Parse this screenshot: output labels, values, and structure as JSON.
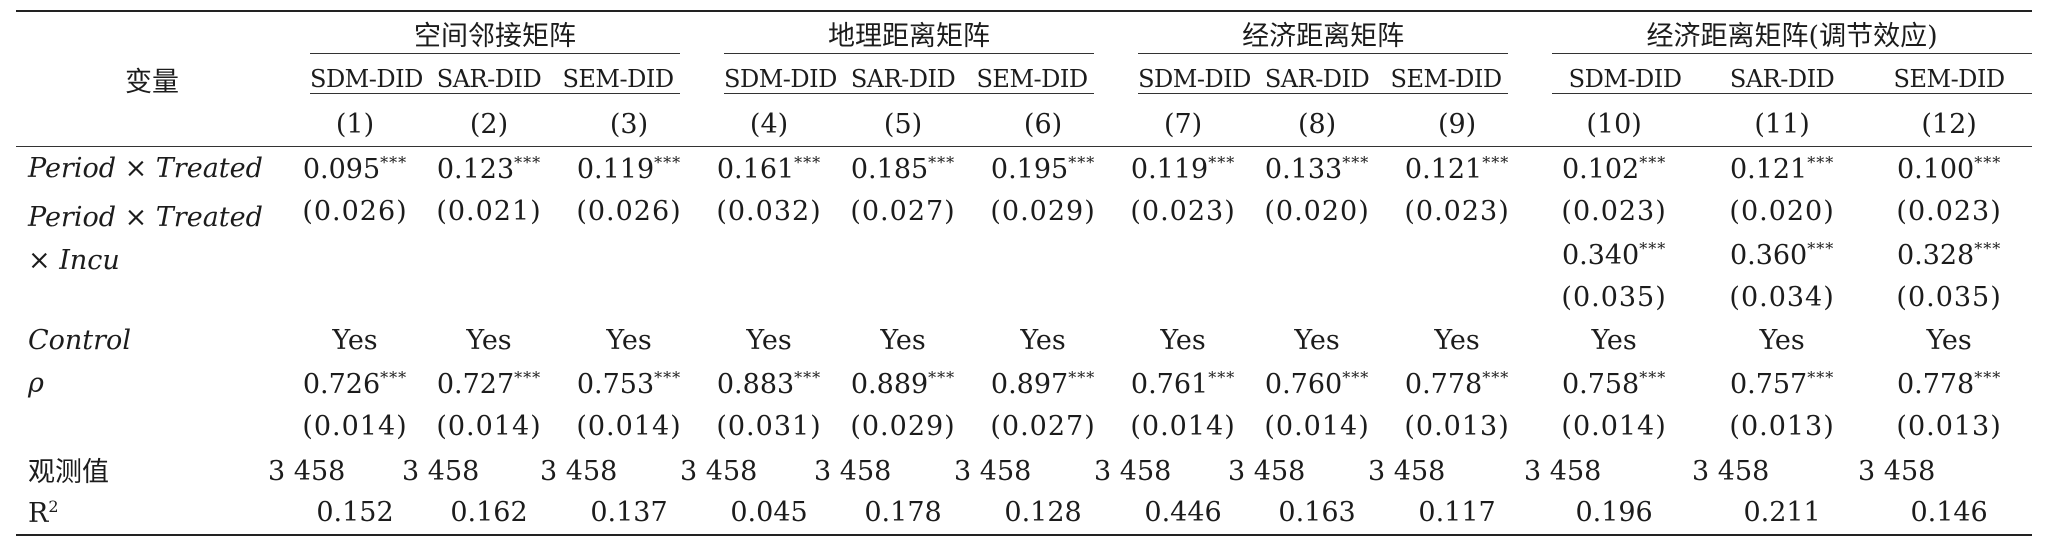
{
  "table": {
    "variable_header": "变量",
    "groups": [
      "空间邻接矩阵",
      "地理距离矩阵",
      "经济距离矩阵",
      "经济距离矩阵(调节效应)"
    ],
    "models": [
      "SDM-DID",
      "SAR-DID",
      "SEM-DID",
      "SDM-DID",
      "SAR-DID",
      "SEM-DID",
      "SDM-DID",
      "SAR-DID",
      "SEM-DID",
      "SDM-DID",
      "SAR-DID",
      "SEM-DID"
    ],
    "col_numbers": [
      "(1)",
      "(2)",
      "(3)",
      "(4)",
      "(5)",
      "(6)",
      "(7)",
      "(8)",
      "(9)",
      "(10)",
      "(11)",
      "(12)"
    ],
    "rows": {
      "period_treated": {
        "label": "Period × Treated",
        "coefs": [
          "0.095",
          "0.123",
          "0.119",
          "0.161",
          "0.185",
          "0.195",
          "0.119",
          "0.133",
          "0.121",
          "0.102",
          "0.121",
          "0.100"
        ],
        "stars": [
          "***",
          "***",
          "***",
          "***",
          "***",
          "***",
          "***",
          "***",
          "***",
          "***",
          "***",
          "***"
        ],
        "se": [
          "(0.026)",
          "(0.021)",
          "(0.026)",
          "(0.032)",
          "(0.027)",
          "(0.029)",
          "(0.023)",
          "(0.020)",
          "(0.023)",
          "(0.023)",
          "(0.020)",
          "(0.023)"
        ]
      },
      "period_treated_incu": {
        "label_line1": "Period × Treated",
        "label_line2": "× Incu",
        "coefs": [
          "0.340",
          "0.360",
          "0.328"
        ],
        "stars": [
          "***",
          "***",
          "***"
        ],
        "se": [
          "(0.035)",
          "(0.034)",
          "(0.035)"
        ]
      },
      "control": {
        "label": "Control",
        "values": [
          "Yes",
          "Yes",
          "Yes",
          "Yes",
          "Yes",
          "Yes",
          "Yes",
          "Yes",
          "Yes",
          "Yes",
          "Yes",
          "Yes"
        ]
      },
      "rho": {
        "label": "ρ",
        "coefs": [
          "0.726",
          "0.727",
          "0.753",
          "0.883",
          "0.889",
          "0.897",
          "0.761",
          "0.760",
          "0.778",
          "0.758",
          "0.757",
          "0.778"
        ],
        "stars": [
          "***",
          "***",
          "***",
          "***",
          "***",
          "***",
          "***",
          "***",
          "***",
          "***",
          "***",
          "***"
        ],
        "se": [
          "(0.014)",
          "(0.014)",
          "(0.014)",
          "(0.031)",
          "(0.029)",
          "(0.027)",
          "(0.014)",
          "(0.014)",
          "(0.013)",
          "(0.014)",
          "(0.013)",
          "(0.013)"
        ]
      },
      "observations": {
        "label": "观测值",
        "values": [
          "3 458",
          "3 458",
          "3 458",
          "3 458",
          "3 458",
          "3 458",
          "3 458",
          "3 458",
          "3 458",
          "3 458",
          "3 458",
          "3 458"
        ]
      },
      "r2": {
        "label": "R",
        "label_sup": "2",
        "values": [
          "0.152",
          "0.162",
          "0.137",
          "0.045",
          "0.178",
          "0.128",
          "0.446",
          "0.163",
          "0.117",
          "0.196",
          "0.211",
          "0.146"
        ]
      }
    }
  }
}
